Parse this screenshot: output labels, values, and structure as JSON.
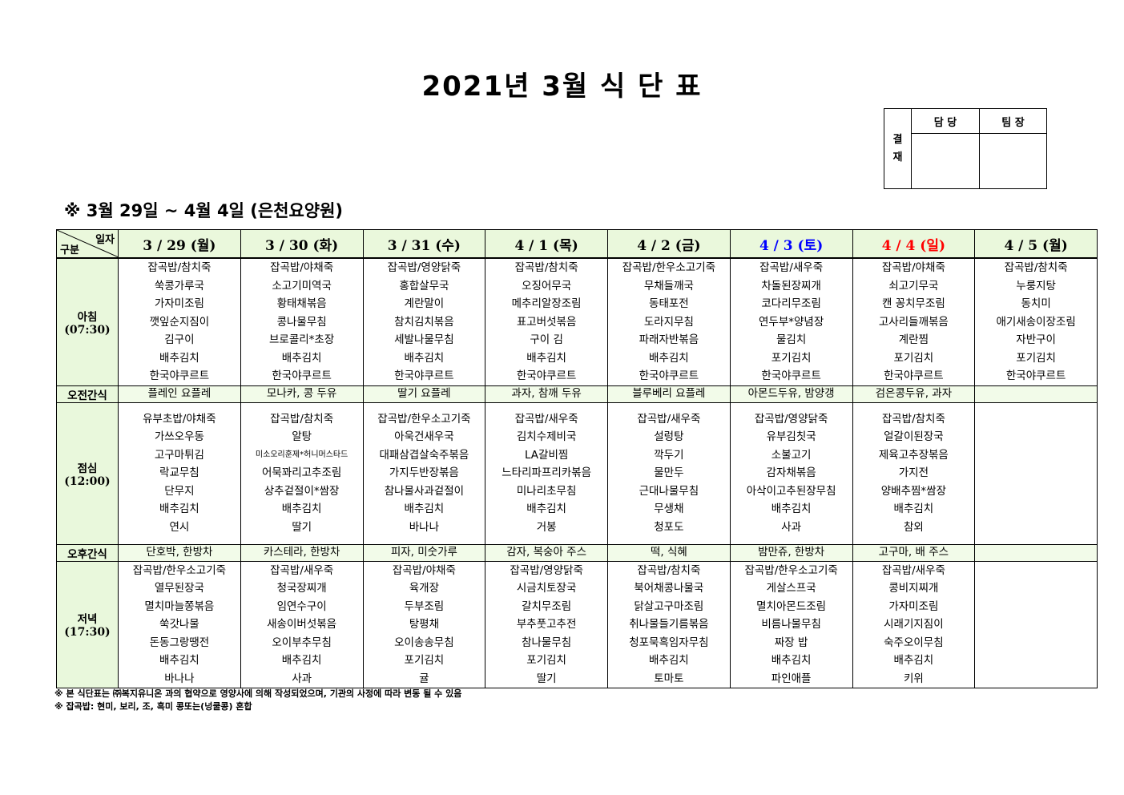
{
  "title": "2021년 3월 식 단 표",
  "approval": {
    "label": "결\n재",
    "label_chars": [
      "결",
      "재"
    ],
    "cols": [
      "담 당",
      "팀 장"
    ]
  },
  "period": "※ 3월 29일 ~ 4월 4일 (은천요양원)",
  "corner": {
    "top": "일자",
    "bottom": "구분"
  },
  "colors": {
    "saturday": "#0000ff",
    "sunday": "#ff0000",
    "header_bg": "#eaf8dc"
  },
  "days": [
    {
      "label": "3 / 29 (월)",
      "color": "#000000"
    },
    {
      "label": "3 / 30 (화)",
      "color": "#000000"
    },
    {
      "label": "3 / 31 (수)",
      "color": "#000000"
    },
    {
      "label": "4 / 1 (목)",
      "color": "#000000"
    },
    {
      "label": "4 / 2 (금)",
      "color": "#000000"
    },
    {
      "label": "4 / 3 (토)",
      "color": "#0000ff"
    },
    {
      "label": "4 / 4 (일)",
      "color": "#ff0000"
    },
    {
      "label": "4 / 5 (월)",
      "color": "#000000"
    }
  ],
  "rows": [
    {
      "label": "아침",
      "time": "(07:30)",
      "type": "meal",
      "cells": [
        [
          "잡곡밥/참치죽",
          "쑥콩가루국",
          "가자미조림",
          "깻잎순지짐이",
          "김구이",
          "배추김치",
          "한국야쿠르트"
        ],
        [
          "잡곡밥/야채죽",
          "소고기미역국",
          "황태채볶음",
          "콩나물무침",
          "브로콜리*초장",
          "배추김치",
          "한국야쿠르트"
        ],
        [
          "잡곡밥/영양닭죽",
          "홍합살무국",
          "계란말이",
          "참치김치볶음",
          "세발나물무침",
          "배추김치",
          "한국야쿠르트"
        ],
        [
          "잡곡밥/참치죽",
          "오징어무국",
          "메추리알장조림",
          "표고버섯볶음",
          "구이 김",
          "배추김치",
          "한국야쿠르트"
        ],
        [
          "잡곡밥/한우소고기죽",
          "무채들깨국",
          "동태포전",
          "도라지무침",
          "파래자반볶음",
          "배추김치",
          "한국야쿠르트"
        ],
        [
          "잡곡밥/새우죽",
          "차돌된장찌개",
          "코다리무조림",
          "연두부*양념장",
          "물김치",
          "포기김치",
          "한국야쿠르트"
        ],
        [
          "잡곡밥/야채죽",
          "쇠고기무국",
          "캔 꽁치무조림",
          "고사리들깨볶음",
          "계란찜",
          "포기김치",
          "한국야쿠르트"
        ],
        [
          "잡곡밥/참치죽",
          "누룽지탕",
          "동치미",
          "애기새송이장조림",
          "자반구이",
          "포기김치",
          "한국야쿠르트"
        ]
      ]
    },
    {
      "label": "오전간식",
      "time": "",
      "type": "snack",
      "cells": [
        [
          "플레인 요플레"
        ],
        [
          "모나카, 콩 두유"
        ],
        [
          "딸기 요플레"
        ],
        [
          "과자, 참깨 두유"
        ],
        [
          "블루베리 요플레"
        ],
        [
          "아몬드두유, 밤양갱"
        ],
        [
          "검은콩두유, 과자"
        ],
        []
      ]
    },
    {
      "label": "점심",
      "time": "(12:00)",
      "type": "meal",
      "cells": [
        [
          "유부초밥/야채죽",
          "가쓰오우동",
          "고구마튀김",
          "락교무침",
          "단무지",
          "배추김치",
          "연시"
        ],
        [
          "잡곡밥/참치죽",
          "알탕",
          "미소오리훈제*허니머스타드",
          "어묵꽈리고추조림",
          "상추겉절이*쌈장",
          "배추김치",
          "딸기"
        ],
        [
          "잡곡밥/한우소고기죽",
          "아욱건새우국",
          "대패삼겹살숙주볶음",
          "가지두반장볶음",
          "참나물사과겉절이",
          "배추김치",
          "바나나"
        ],
        [
          "잡곡밥/새우죽",
          "김치수제비국",
          "LA갈비찜",
          "느타리파프리카볶음",
          "미나리초무침",
          "배추김치",
          "거봉"
        ],
        [
          "잡곡밥/새우죽",
          "설렁탕",
          "깍두기",
          "물만두",
          "근대나물무침",
          "무생채",
          "청포도"
        ],
        [
          "잡곡밥/영양닭죽",
          "유부김칫국",
          "소불고기",
          "감자채볶음",
          "아삭이고추된장무침",
          "배추김치",
          "사과"
        ],
        [
          "잡곡밥/참치죽",
          "얼갈이된장국",
          "제육고추장볶음",
          "가지전",
          "양배추찜*쌈장",
          "배추김치",
          "참외"
        ],
        []
      ]
    },
    {
      "label": "오후간식",
      "time": "",
      "type": "snack",
      "cells": [
        [
          "단호박, 한방차"
        ],
        [
          "카스테라, 한방차"
        ],
        [
          "피자, 미숫가루"
        ],
        [
          "감자, 복숭아 주스"
        ],
        [
          "떡, 식혜"
        ],
        [
          "밤만쥬, 한방차"
        ],
        [
          "고구마, 배 주스"
        ],
        []
      ]
    },
    {
      "label": "저녁",
      "time": "(17:30)",
      "type": "meal",
      "cells": [
        [
          "잡곡밥/한우소고기죽",
          "열무된장국",
          "멸치마늘쫑볶음",
          "쑥갓나물",
          "돈동그랑땡전",
          "배추김치",
          "바나나"
        ],
        [
          "잡곡밥/새우죽",
          "청국장찌개",
          "임연수구이",
          "새송이버섯볶음",
          "오이부추무침",
          "배추김치",
          "사과"
        ],
        [
          "잡곡밥/야채죽",
          "육개장",
          "두부조림",
          "탕평채",
          "오이송송무침",
          "포기김치",
          "귤"
        ],
        [
          "잡곡밥/영양닭죽",
          "시금치토장국",
          "갈치무조림",
          "부추풋고추전",
          "참나물무침",
          "포기김치",
          "딸기"
        ],
        [
          "잡곡밥/참치죽",
          "북어채콩나물국",
          "닭살고구마조림",
          "취나물들기름볶음",
          "청포묵흑임자무침",
          "배추김치",
          "토마토"
        ],
        [
          "잡곡밥/한우소고기죽",
          "게살스프국",
          "멸치아몬드조림",
          "비름나물무침",
          "짜장 밥",
          "배추김치",
          "파인애플"
        ],
        [
          "잡곡밥/새우죽",
          "콩비지찌개",
          "가자미조림",
          "시래기지짐이",
          "숙주오이무침",
          "배추김치",
          "키위"
        ],
        []
      ]
    }
  ],
  "notes": [
    "※ 본 식단표는 ㈜복지유니온 과의 협약으로 영양사에 의해 작성되었으며, 기관의 사정에 따라 변동 될 수 있음",
    "※ 잡곡밥: 현미, 보리, 조, 흑미 콩또는(넝쿨콩) 혼합"
  ]
}
